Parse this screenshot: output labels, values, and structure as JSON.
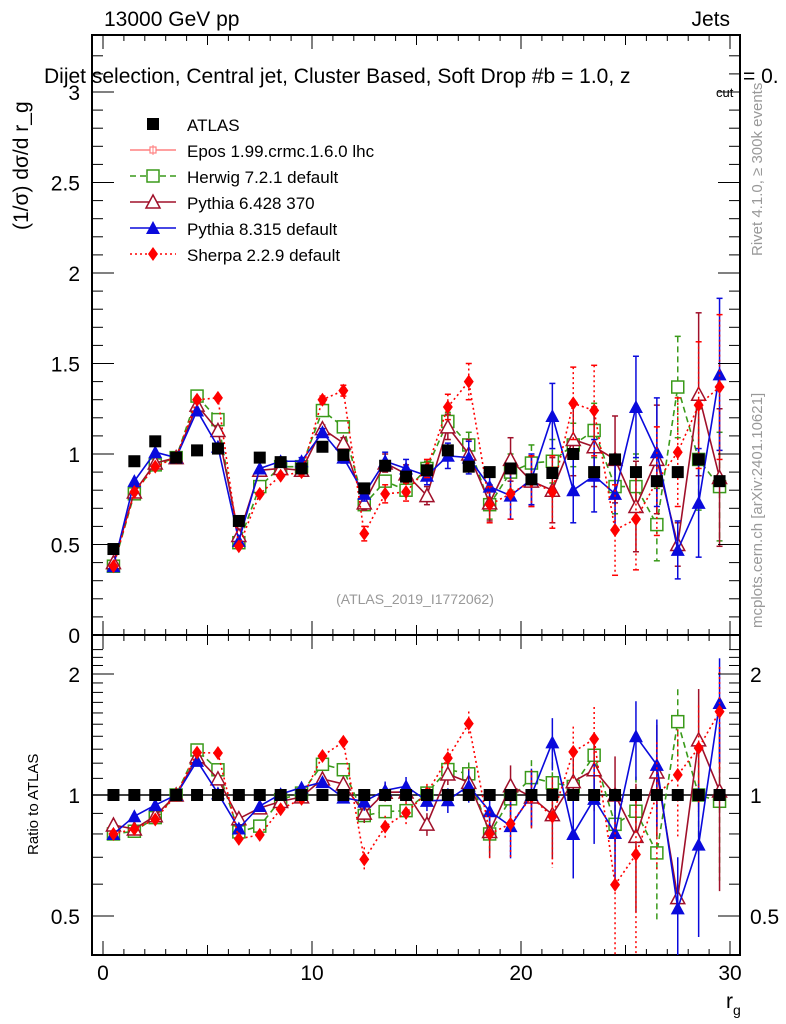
{
  "header": {
    "left_title": "13000 GeV pp",
    "right_title": "Jets",
    "subtitle": "Dijet selection, Central jet, Cluster Based, Soft Drop #b = 1.0, z",
    "subtitle_sub": "cut",
    "subtitle_tail": " = 0."
  },
  "side_text": {
    "rivet": "Rivet 4.1.0, ≥ 300k events",
    "mcplots": "mcplots.cern.ch [arXiv:2401.10621]"
  },
  "watermark": "(ATLAS_2019_I1772062)",
  "chart_data": {
    "type": "scatter",
    "title": "Dijet selection, Central jet, Cluster Based, Soft Drop beta = 1.0, z_cut = 0.",
    "xlabel": "r_g",
    "ylabel": "(1/σ) dσ/d r_g",
    "ratio_ylabel": "Ratio to ATLAS",
    "xlim": [
      -0.5,
      30.5
    ],
    "ylim": [
      0,
      3.2
    ],
    "ratio_ylim": [
      0.42,
      2.35
    ],
    "ratio_scale": "log",
    "x_ticks": [
      "0",
      "10",
      "20",
      "30"
    ],
    "y_ticks": [
      "0",
      "0.5",
      "1",
      "1.5",
      "2",
      "2.5",
      "3"
    ],
    "ratio_ticks": [
      "0.5",
      "1",
      "2"
    ],
    "legend_position": "top-left",
    "x": [
      0.5,
      1.5,
      2.5,
      3.5,
      4.5,
      5.5,
      6.5,
      7.5,
      8.5,
      9.5,
      10.5,
      11.5,
      12.5,
      13.5,
      14.5,
      15.5,
      16.5,
      17.5,
      18.5,
      19.5,
      20.5,
      21.5,
      22.5,
      23.5,
      24.5,
      25.5,
      26.5,
      27.5,
      28.5,
      29.5
    ],
    "series": [
      {
        "name": "ATLAS",
        "color": "#000000",
        "marker": "square-filled",
        "line": "none",
        "values": [
          0.475,
          0.96,
          1.07,
          0.98,
          1.02,
          1.03,
          0.63,
          0.98,
          0.955,
          0.92,
          1.04,
          0.995,
          0.81,
          0.935,
          0.875,
          0.91,
          1.02,
          0.93,
          0.9,
          0.92,
          0.86,
          0.895,
          1.0,
          0.9,
          0.97,
          0.9,
          0.85,
          0.9,
          0.97,
          0.85
        ]
      },
      {
        "name": "Epos 1.99.crmc.1.6.0 lhc",
        "color": "#ff8080",
        "marker": "cross-square",
        "line": "solid",
        "values": []
      },
      {
        "name": "Herwig 7.2.1 default",
        "color": "#3a9a1a",
        "marker": "square-open",
        "line": "dashed",
        "values": [
          0.38,
          0.78,
          0.94,
          0.98,
          1.32,
          1.19,
          0.51,
          0.82,
          0.93,
          0.93,
          1.24,
          1.15,
          0.72,
          0.85,
          0.8,
          0.92,
          1.18,
          1.05,
          0.72,
          0.9,
          0.95,
          0.96,
          1.05,
          1.13,
          0.82,
          0.82,
          0.61,
          1.37,
          0.97,
          0.82
        ],
        "errors": [
          0.01,
          0.01,
          0.01,
          0.01,
          0.01,
          0.01,
          0.01,
          0.01,
          0.01,
          0.01,
          0.02,
          0.02,
          0.03,
          0.03,
          0.03,
          0.04,
          0.05,
          0.07,
          0.08,
          0.1,
          0.1,
          0.12,
          0.12,
          0.15,
          0.15,
          0.18,
          0.2,
          0.28,
          0.28,
          0.3
        ]
      },
      {
        "name": "Pythia 6.428 370",
        "color": "#a0102a",
        "marker": "triangle-open",
        "line": "solid",
        "values": [
          0.4,
          0.79,
          0.95,
          0.98,
          1.27,
          1.13,
          0.55,
          0.91,
          0.92,
          0.91,
          1.14,
          1.06,
          0.73,
          0.95,
          0.89,
          0.77,
          1.15,
          1.0,
          0.73,
          0.97,
          0.85,
          0.8,
          1.08,
          1.04,
          0.97,
          0.71,
          0.97,
          0.5,
          1.33,
          0.87
        ],
        "errors": [
          0.01,
          0.01,
          0.01,
          0.01,
          0.01,
          0.01,
          0.01,
          0.01,
          0.01,
          0.02,
          0.02,
          0.03,
          0.04,
          0.05,
          0.05,
          0.05,
          0.07,
          0.08,
          0.1,
          0.12,
          0.14,
          0.18,
          0.2,
          0.22,
          0.24,
          0.25,
          0.3,
          0.12,
          0.45,
          0.38
        ]
      },
      {
        "name": "Pythia 8.315 default",
        "color": "#0a0adc",
        "marker": "triangle-filled",
        "line": "solid",
        "values": [
          0.38,
          0.85,
          1.01,
          0.98,
          1.24,
          1.04,
          0.52,
          0.92,
          0.96,
          0.96,
          1.12,
          0.98,
          0.78,
          0.96,
          0.92,
          0.88,
          0.99,
          0.98,
          0.82,
          0.77,
          0.86,
          1.21,
          0.8,
          0.88,
          0.78,
          1.26,
          1.01,
          0.47,
          0.73,
          1.44
        ],
        "errors": [
          0.01,
          0.01,
          0.01,
          0.01,
          0.01,
          0.01,
          0.01,
          0.01,
          0.01,
          0.02,
          0.02,
          0.03,
          0.04,
          0.05,
          0.05,
          0.05,
          0.07,
          0.09,
          0.1,
          0.13,
          0.14,
          0.18,
          0.18,
          0.2,
          0.2,
          0.28,
          0.3,
          0.16,
          0.3,
          0.42
        ]
      },
      {
        "name": "Sherpa 2.2.9 default",
        "color": "#ff0000",
        "marker": "diamond-filled",
        "line": "dotted",
        "values": [
          0.38,
          0.79,
          0.93,
          0.98,
          1.3,
          1.31,
          0.49,
          0.78,
          0.88,
          0.9,
          1.3,
          1.35,
          0.56,
          0.78,
          0.79,
          0.92,
          1.26,
          1.4,
          0.72,
          0.78,
          0.85,
          0.79,
          1.28,
          1.24,
          0.58,
          0.64,
          0.85,
          1.01,
          1.27,
          1.37
        ],
        "errors": [
          0.01,
          0.01,
          0.01,
          0.01,
          0.01,
          0.01,
          0.01,
          0.01,
          0.01,
          0.02,
          0.02,
          0.03,
          0.04,
          0.05,
          0.05,
          0.05,
          0.07,
          0.1,
          0.1,
          0.14,
          0.14,
          0.2,
          0.2,
          0.25,
          0.25,
          0.28,
          0.3,
          0.3,
          0.35,
          0.4
        ]
      }
    ]
  }
}
